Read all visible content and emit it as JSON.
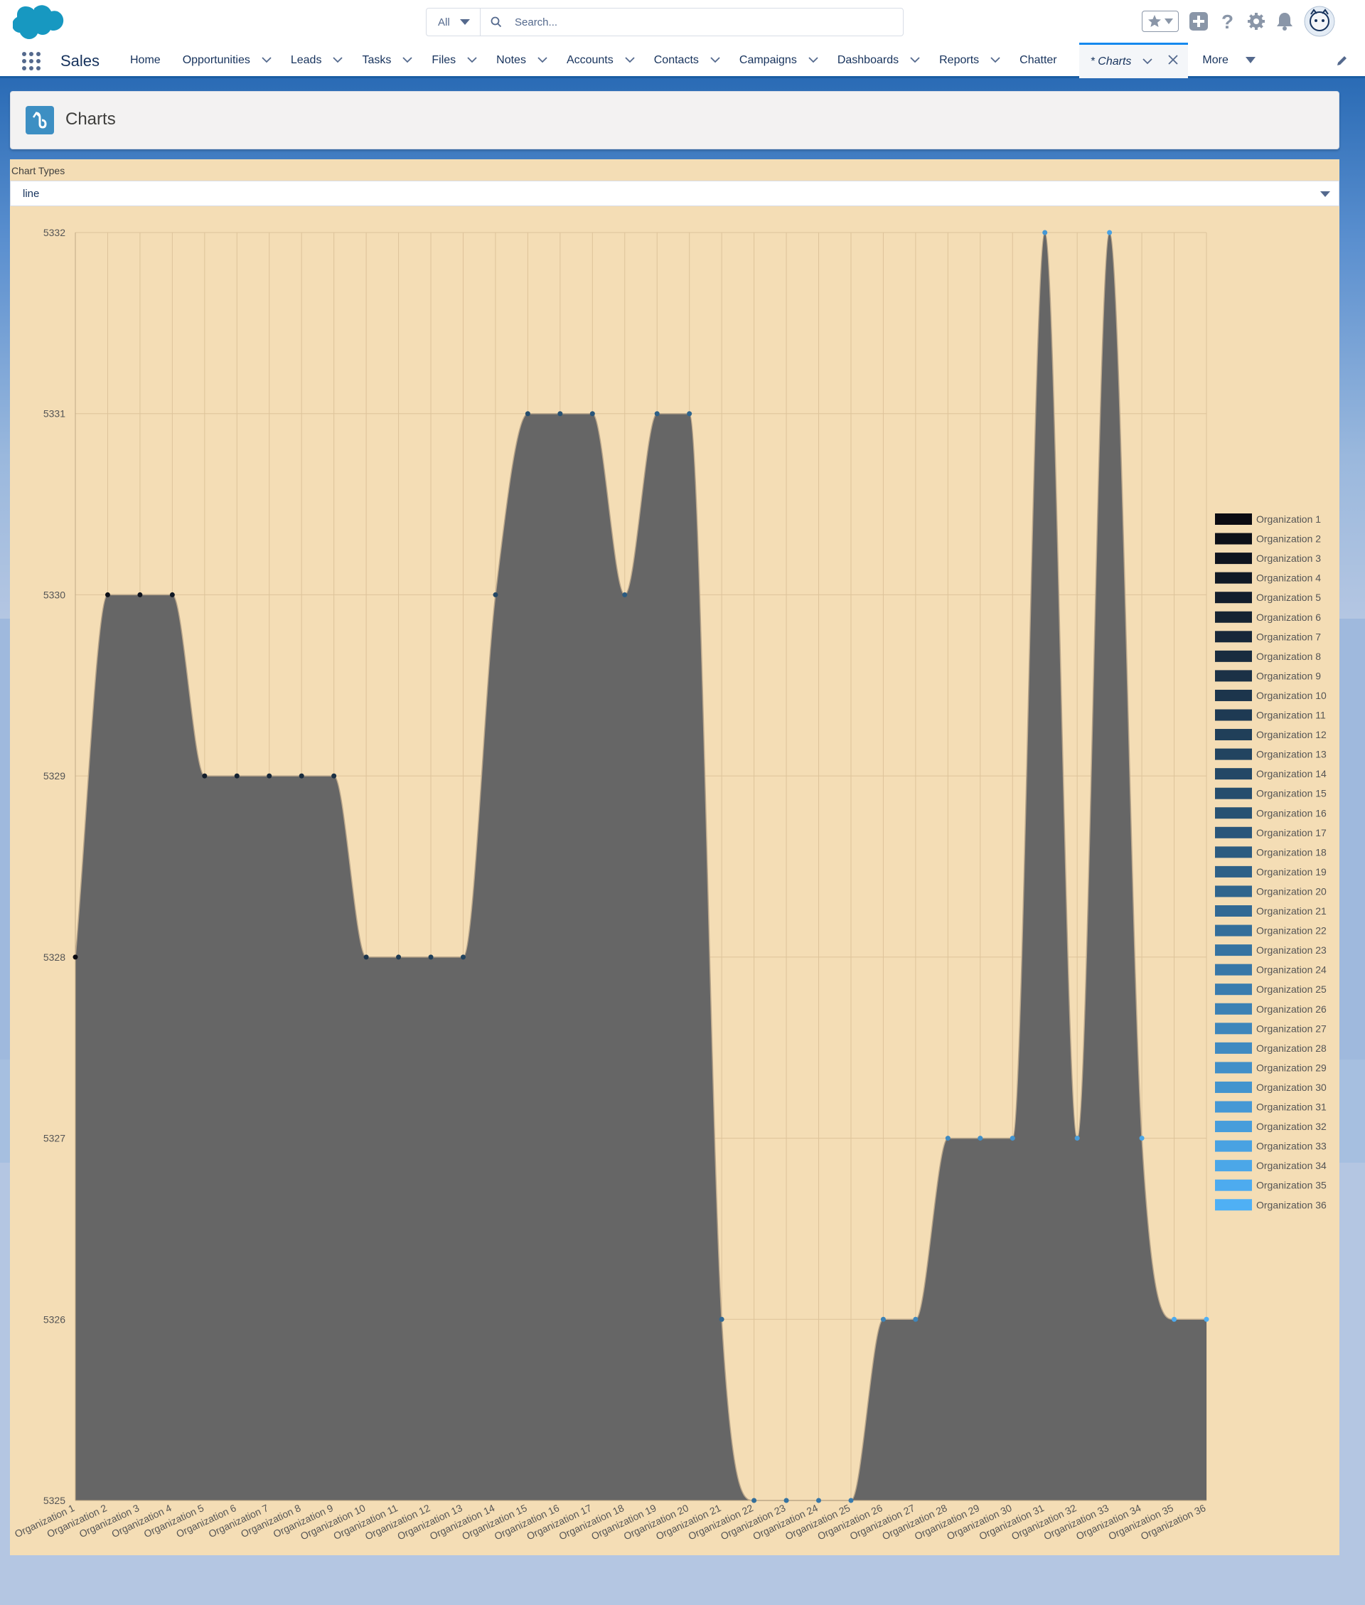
{
  "search": {
    "scope": "All",
    "placeholder": "Search..."
  },
  "app": {
    "name": "Sales"
  },
  "nav": {
    "items": [
      {
        "label": "Home",
        "dropdown": false
      },
      {
        "label": "Opportunities",
        "dropdown": true
      },
      {
        "label": "Leads",
        "dropdown": true
      },
      {
        "label": "Tasks",
        "dropdown": true
      },
      {
        "label": "Files",
        "dropdown": true
      },
      {
        "label": "Notes",
        "dropdown": true
      },
      {
        "label": "Accounts",
        "dropdown": true
      },
      {
        "label": "Contacts",
        "dropdown": true
      },
      {
        "label": "Campaigns",
        "dropdown": true
      },
      {
        "label": "Dashboards",
        "dropdown": true
      },
      {
        "label": "Reports",
        "dropdown": true
      },
      {
        "label": "Chatter",
        "dropdown": false
      }
    ],
    "active_tab": "* Charts",
    "more": "More"
  },
  "page": {
    "title": "Charts"
  },
  "chart_types": {
    "label": "Chart Types",
    "selected": "line"
  },
  "colors": {
    "panel_bg": "#f4ddb5",
    "area_fill": "#666666",
    "series_dark": "#0b0b12",
    "series_light": "#4fb0f5"
  },
  "chart_data": {
    "type": "area",
    "categories": [
      "Organization 1",
      "Organization 2",
      "Organization 3",
      "Organization 4",
      "Organization 5",
      "Organization 6",
      "Organization 7",
      "Organization 8",
      "Organization 9",
      "Organization 10",
      "Organization 11",
      "Organization 12",
      "Organization 13",
      "Organization 14",
      "Organization 15",
      "Organization 16",
      "Organization 17",
      "Organization 18",
      "Organization 19",
      "Organization 20",
      "Organization 21",
      "Organization 22",
      "Organization 23",
      "Organization 24",
      "Organization 25",
      "Organization 26",
      "Organization 27",
      "Organization 28",
      "Organization 29",
      "Organization 30",
      "Organization 31",
      "Organization 32",
      "Organization 33",
      "Organization 34",
      "Organization 35",
      "Organization 36"
    ],
    "values": [
      5328,
      5330,
      5330,
      5330,
      5329,
      5329,
      5329,
      5329,
      5329,
      5328,
      5328,
      5328,
      5328,
      5330,
      5331,
      5331,
      5331,
      5330,
      5331,
      5331,
      5326,
      5325,
      5325,
      5325,
      5325,
      5326,
      5326,
      5327,
      5327,
      5327,
      5332,
      5327,
      5332,
      5327,
      5326,
      5326
    ],
    "yticks": [
      "5325",
      "5326",
      "5327",
      "5328",
      "5329",
      "5330",
      "5331",
      "5332"
    ],
    "ylim": [
      5325,
      5332
    ],
    "legend": [
      "Organization 1",
      "Organization 2",
      "Organization 3",
      "Organization 4",
      "Organization 5",
      "Organization 6",
      "Organization 7",
      "Organization 8",
      "Organization 9",
      "Organization 10",
      "Organization 11",
      "Organization 12",
      "Organization 13",
      "Organization 14",
      "Organization 15",
      "Organization 16",
      "Organization 17",
      "Organization 18",
      "Organization 19",
      "Organization 20",
      "Organization 21",
      "Organization 22",
      "Organization 23",
      "Organization 24",
      "Organization 25",
      "Organization 26",
      "Organization 27",
      "Organization 28",
      "Organization 29",
      "Organization 30",
      "Organization 31",
      "Organization 32",
      "Organization 33",
      "Organization 34",
      "Organization 35",
      "Organization 36"
    ],
    "legend_position": "right",
    "grid": true,
    "smooth": true
  }
}
